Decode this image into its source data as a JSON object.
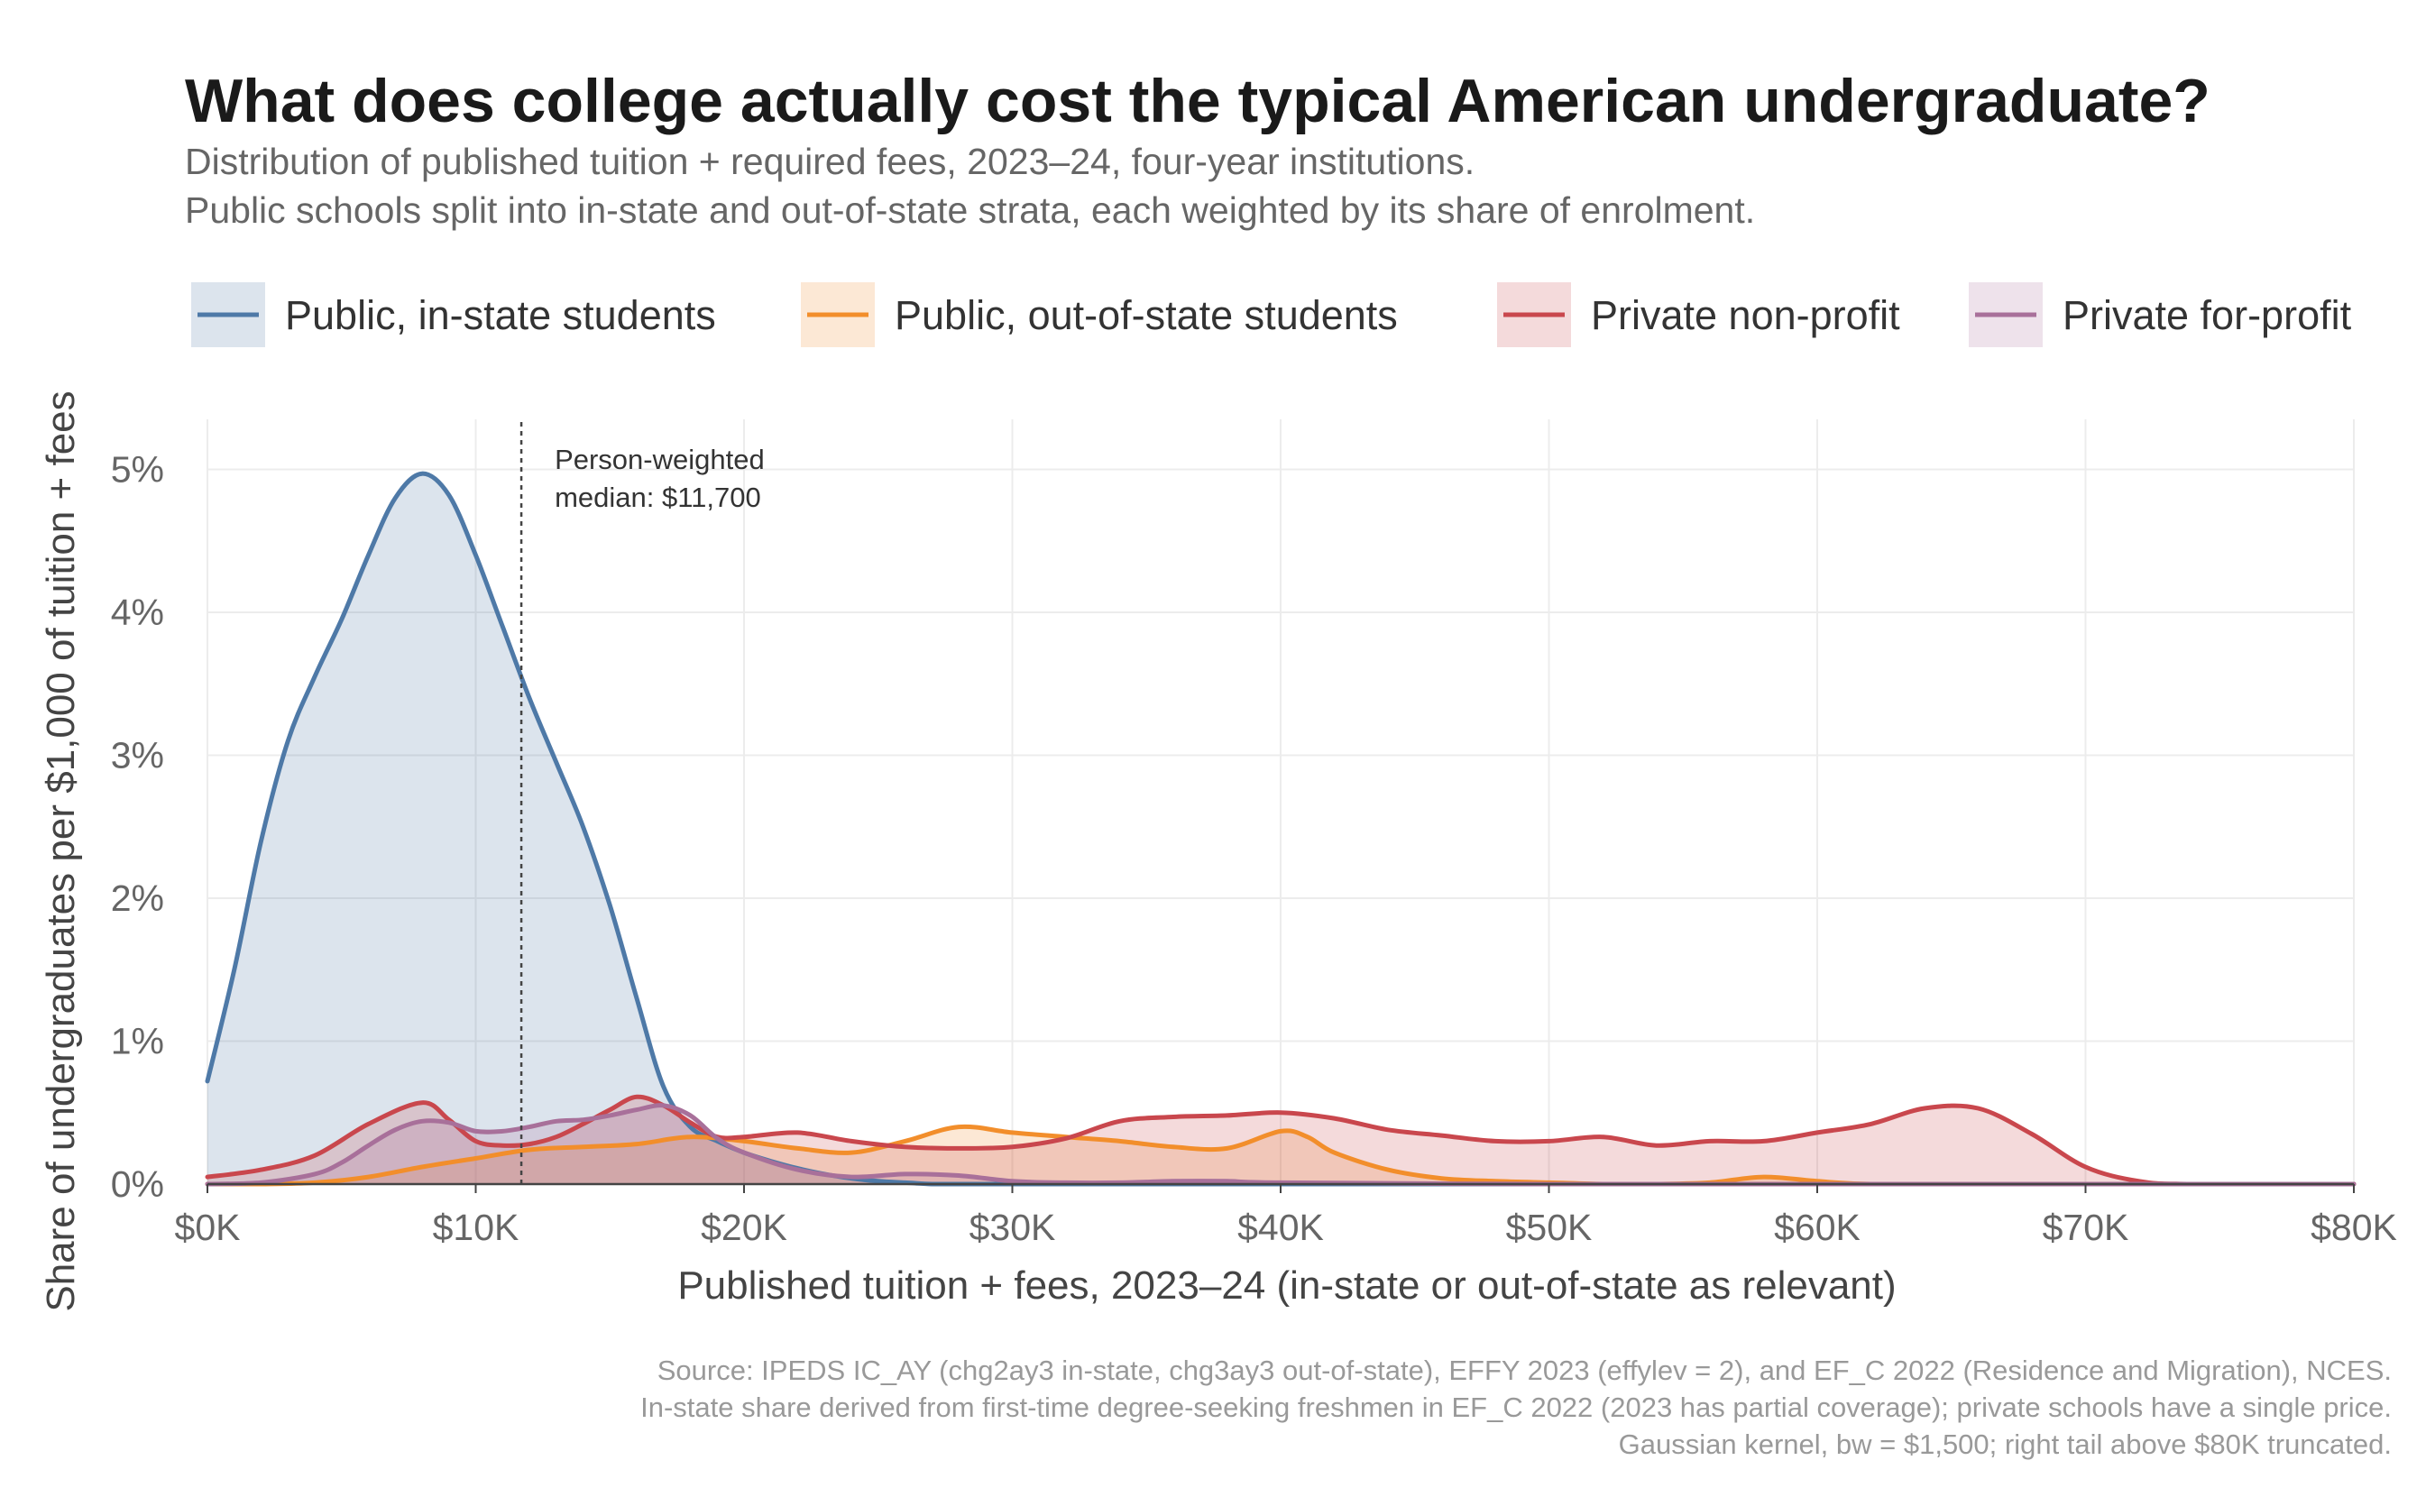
{
  "chart_data": {
    "type": "area",
    "title": "What does college actually cost the typical American undergraduate?",
    "subtitle_lines": [
      "Distribution of published tuition + required fees, 2023–24, four-year institutions.",
      "Public schools split into in-state and out-of-state strata, each weighted by its share of enrolment."
    ],
    "xlabel": "Published tuition + fees, 2023–24 (in-state or out-of-state as relevant)",
    "ylabel": "Share of undergraduates per $1,000 of tuition + fees",
    "xlim": [
      0,
      80
    ],
    "ylim": [
      0,
      5.35
    ],
    "x_ticks": [
      0,
      10,
      20,
      30,
      40,
      50,
      60,
      70,
      80
    ],
    "x_tick_labels": [
      "$0K",
      "$10K",
      "$20K",
      "$30K",
      "$40K",
      "$50K",
      "$60K",
      "$70K",
      "$80K"
    ],
    "y_ticks": [
      0,
      1,
      2,
      3,
      4,
      5
    ],
    "y_tick_labels": [
      "0%",
      "1%",
      "2%",
      "3%",
      "4%",
      "5%"
    ],
    "grid": true,
    "legend_position": "top",
    "annotation": {
      "x": 11.7,
      "lines": [
        "Person-weighted",
        "median: $11,700"
      ]
    },
    "caption_lines": [
      "Source: IPEDS IC_AY (chg2ay3 in-state, chg3ay3 out-of-state), EFFY 2023 (effylev = 2), and EF_C 2022 (Residence and Migration), NCES.",
      "In-state share derived from first-time degree-seeking freshmen in EF_C 2022 (2023 has partial coverage); private schools have a single price.",
      "Gaussian kernel, bw = $1,500; right tail above $80K truncated."
    ],
    "series": [
      {
        "name": "Public, in-state students",
        "color": "#4e79a7",
        "fill": "#dbe3ed",
        "x": [
          0,
          1,
          2,
          3,
          4,
          5,
          6,
          7,
          8,
          9,
          10,
          11,
          12,
          13,
          14,
          15,
          16,
          17,
          18,
          19,
          20,
          21,
          22,
          23,
          24,
          25,
          26,
          27,
          28,
          29,
          30,
          32,
          35,
          40,
          50,
          60,
          70,
          80
        ],
        "y": [
          0.72,
          1.5,
          2.4,
          3.1,
          3.55,
          3.95,
          4.4,
          4.8,
          4.97,
          4.82,
          4.4,
          3.9,
          3.4,
          2.95,
          2.5,
          1.95,
          1.3,
          0.68,
          0.4,
          0.3,
          0.22,
          0.16,
          0.11,
          0.07,
          0.04,
          0.02,
          0.01,
          0.0,
          0.0,
          0.0,
          0.0,
          0.0,
          0.0,
          0.0,
          0.0,
          0.0,
          0.0,
          0.0
        ]
      },
      {
        "name": "Public, out-of-state students",
        "color": "#f28e2b",
        "fill": "#fde4cc",
        "x": [
          0,
          2,
          4,
          6,
          8,
          10,
          12,
          14,
          16,
          18,
          20,
          22,
          24,
          26,
          28,
          30,
          32,
          34,
          36,
          38,
          40,
          41,
          42,
          44,
          46,
          48,
          50,
          52,
          54,
          56,
          58,
          60,
          62,
          66,
          70,
          80
        ],
        "y": [
          0.0,
          0.0,
          0.01,
          0.05,
          0.12,
          0.18,
          0.24,
          0.26,
          0.28,
          0.33,
          0.3,
          0.25,
          0.22,
          0.3,
          0.4,
          0.36,
          0.33,
          0.3,
          0.26,
          0.25,
          0.37,
          0.33,
          0.22,
          0.1,
          0.04,
          0.02,
          0.01,
          0.0,
          0.0,
          0.01,
          0.05,
          0.02,
          0.0,
          0.0,
          0.0,
          0.0
        ]
      },
      {
        "name": "Private non-profit",
        "color": "#c9474d",
        "fill": "#f1d6d6",
        "x": [
          0,
          2,
          4,
          6,
          8,
          9,
          10,
          11,
          12,
          13,
          14,
          15,
          16,
          17,
          18,
          19,
          20,
          22,
          24,
          26,
          28,
          30,
          32,
          34,
          36,
          38,
          40,
          42,
          44,
          46,
          48,
          50,
          52,
          54,
          56,
          58,
          60,
          62,
          64,
          66,
          68,
          70,
          72,
          74,
          80
        ],
        "y": [
          0.05,
          0.1,
          0.2,
          0.42,
          0.57,
          0.45,
          0.3,
          0.27,
          0.28,
          0.33,
          0.42,
          0.52,
          0.61,
          0.55,
          0.43,
          0.33,
          0.33,
          0.36,
          0.3,
          0.26,
          0.25,
          0.26,
          0.32,
          0.44,
          0.47,
          0.48,
          0.5,
          0.46,
          0.38,
          0.34,
          0.3,
          0.3,
          0.33,
          0.27,
          0.3,
          0.3,
          0.36,
          0.42,
          0.53,
          0.53,
          0.35,
          0.12,
          0.02,
          0.0,
          0.0
        ]
      },
      {
        "name": "Private for-profit",
        "color": "#a8709a",
        "fill": "#ecdae6",
        "x": [
          0,
          2,
          4,
          5,
          6,
          7,
          8,
          9,
          10,
          11,
          12,
          13,
          14,
          15,
          16,
          17,
          18,
          19,
          20,
          22,
          24,
          26,
          28,
          30,
          32,
          34,
          36,
          38,
          40,
          50,
          60,
          70,
          80
        ],
        "y": [
          0.0,
          0.01,
          0.07,
          0.15,
          0.27,
          0.38,
          0.44,
          0.43,
          0.37,
          0.37,
          0.4,
          0.44,
          0.45,
          0.48,
          0.52,
          0.55,
          0.48,
          0.32,
          0.22,
          0.1,
          0.05,
          0.07,
          0.06,
          0.02,
          0.01,
          0.01,
          0.02,
          0.02,
          0.01,
          0.0,
          0.0,
          0.0,
          0.0
        ]
      }
    ]
  }
}
